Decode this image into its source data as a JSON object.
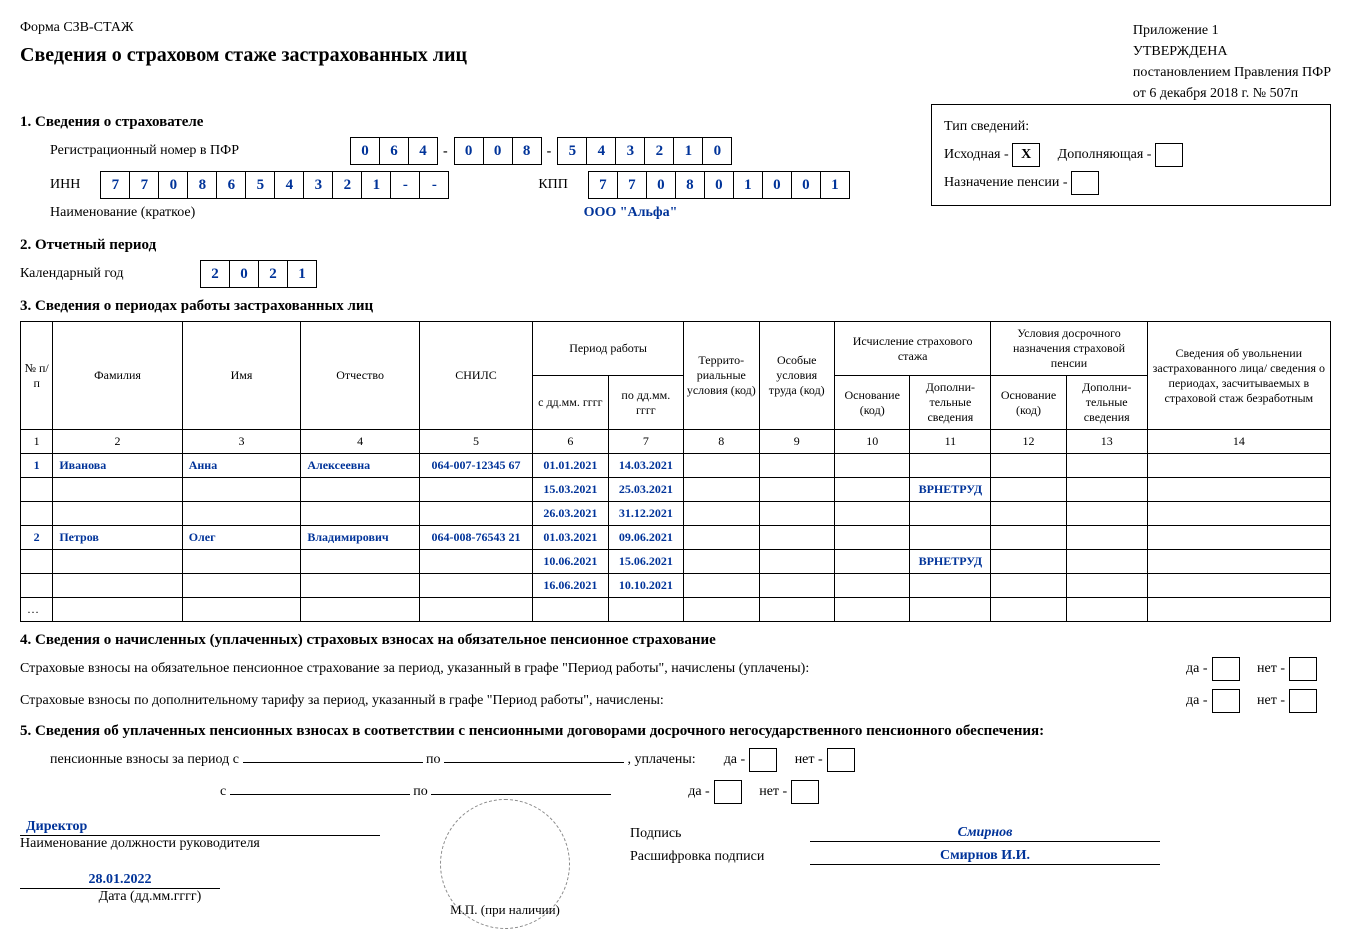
{
  "approval": {
    "line1": "Приложение 1",
    "line2": "УТВЕРЖДЕНА",
    "line3": "постановлением Правления ПФР",
    "line4": "от 6 декабря 2018 г. № 507п"
  },
  "form_name": "Форма СЗВ-СТАЖ",
  "title": "Сведения о страховом стаже застрахованных лиц",
  "section1_hdr": "1. Сведения о страхователе",
  "reg_label": "Регистрационный номер в ПФР",
  "reg_parts": [
    [
      "0",
      "6",
      "4"
    ],
    [
      "0",
      "0",
      "8"
    ],
    [
      "5",
      "4",
      "3",
      "2",
      "1",
      "0"
    ]
  ],
  "inn_label": "ИНН",
  "inn": [
    "7",
    "7",
    "0",
    "8",
    "6",
    "5",
    "4",
    "3",
    "2",
    "1",
    "-",
    "-"
  ],
  "kpp_label": "КПП",
  "kpp": [
    "7",
    "7",
    "0",
    "8",
    "0",
    "1",
    "0",
    "0",
    "1"
  ],
  "org_label": "Наименование (краткое)",
  "org_name": "ООО \"Альфа\"",
  "info_type_label": "Тип сведений:",
  "opt_original": "Исходная - ",
  "opt_original_val": "Х",
  "opt_suppl": "Дополняющая - ",
  "opt_suppl_val": "",
  "opt_pension": "Назначение пенсии - ",
  "opt_pension_val": "",
  "section2_hdr": "2. Отчетный период",
  "year_label": "Календарный год",
  "year": [
    "2",
    "0",
    "2",
    "1"
  ],
  "section3_hdr": "3. Сведения о периодах работы застрахованных лиц",
  "table_headers": {
    "num": "№ п/п",
    "surname": "Фамилия",
    "name": "Имя",
    "patronymic": "Отчество",
    "snils": "СНИЛС",
    "period": "Период работы",
    "from": "с дд.мм. гггг",
    "to": "по дд.мм. гггг",
    "terr": "Террито- риальные условия (код)",
    "special": "Особые условия труда (код)",
    "calc_grp": "Исчисление страхового стажа",
    "early_grp": "Условия досрочного назначения страховой пенсии",
    "basis": "Основание (код)",
    "extra": "Дополни- тельные сведения",
    "dismissal": "Сведения об увольнении застрахованного лица/ сведения о периодах, засчитываемых в страховой стаж безработным"
  },
  "col_nums": [
    "1",
    "2",
    "3",
    "4",
    "5",
    "6",
    "7",
    "8",
    "9",
    "10",
    "11",
    "12",
    "13",
    "14"
  ],
  "rows": [
    {
      "n": "1",
      "f": "Иванова",
      "i": "Анна",
      "o": "Алексеевна",
      "s": "064-007-12345 67",
      "from": "01.01.2021",
      "to": "14.03.2021",
      "c11": ""
    },
    {
      "n": "",
      "f": "",
      "i": "",
      "o": "",
      "s": "",
      "from": "15.03.2021",
      "to": "25.03.2021",
      "c11": "ВРНЕТРУД"
    },
    {
      "n": "",
      "f": "",
      "i": "",
      "o": "",
      "s": "",
      "from": "26.03.2021",
      "to": "31.12.2021",
      "c11": ""
    },
    {
      "n": "2",
      "f": "Петров",
      "i": "Олег",
      "o": "Владимирович",
      "s": "064-008-76543 21",
      "from": "01.03.2021",
      "to": "09.06.2021",
      "c11": ""
    },
    {
      "n": "",
      "f": "",
      "i": "",
      "o": "",
      "s": "",
      "from": "10.06.2021",
      "to": "15.06.2021",
      "c11": "ВРНЕТРУД"
    },
    {
      "n": "",
      "f": "",
      "i": "",
      "o": "",
      "s": "",
      "from": "16.06.2021",
      "to": "10.10.2021",
      "c11": ""
    }
  ],
  "row_ellipsis": "…",
  "section4_hdr": "4. Сведения о начисленных (уплаченных) страховых взносах на обязательное пенсионное страхование",
  "s4_line1": "Страховые взносы на обязательное пенсионное страхование за период, указанный в графе \"Период работы\", начислены (уплачены):",
  "s4_line2": "Страховые взносы по дополнительному тарифу за период, указанный в графе \"Период работы\", начислены:",
  "yes": "да - ",
  "no": "нет - ",
  "section5_hdr": "5. Сведения об уплаченных пенсионных взносах в соответствии с пенсионными договорами досрочного негосударственного пенсионного обеспечения:",
  "s5_line1_a": "пенсионные взносы за период с",
  "s5_line1_b": "по",
  "s5_line1_c": ", уплачены:",
  "s5_line2_a": "с",
  "s5_line2_b": "по",
  "director": "Директор",
  "director_sub": "Наименование должности руководителя",
  "signature_label": "Подпись",
  "signature_val": "Смирнов",
  "decode_label": "Расшифровка подписи",
  "decode_val": "Смирнов И.И.",
  "date_val": "28.01.2022",
  "date_sub": "Дата (дд.мм.гггг)",
  "stamp": "М.П. (при наличии)"
}
